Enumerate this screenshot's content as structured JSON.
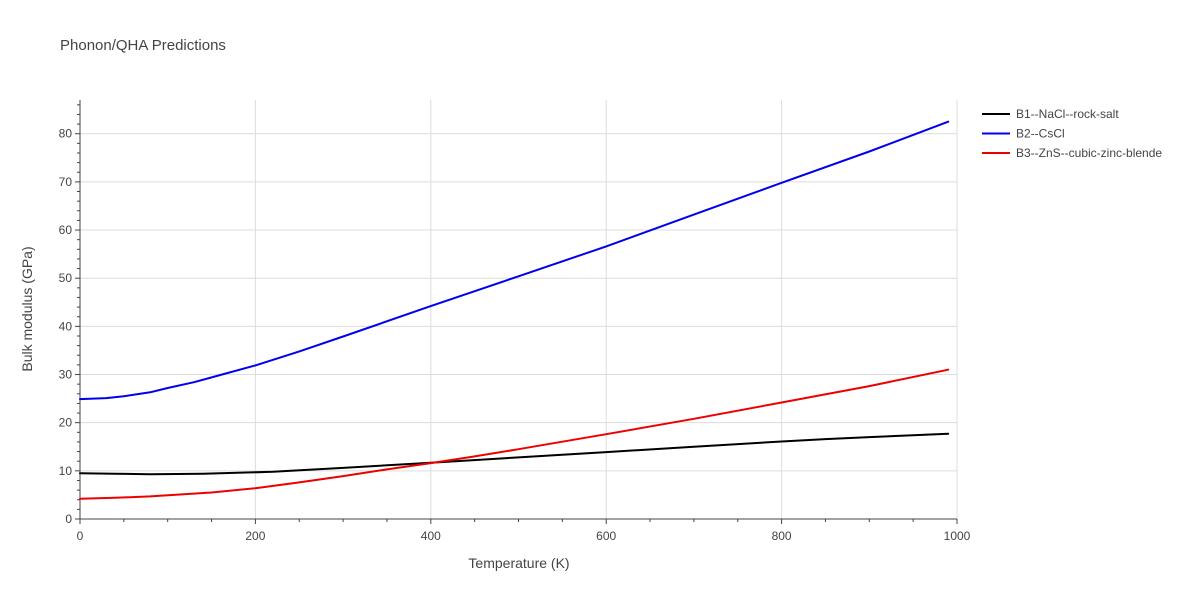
{
  "chart_data": {
    "type": "line",
    "title": "Phonon/QHA Predictions",
    "xlabel": "Temperature (K)",
    "ylabel": "Bulk modulus (GPa)",
    "xlim": [
      0,
      1000
    ],
    "ylim": [
      0,
      87
    ],
    "x_ticks": [
      0,
      200,
      400,
      600,
      800,
      1000
    ],
    "y_ticks": [
      0,
      10,
      20,
      30,
      40,
      50,
      60,
      70,
      80
    ],
    "grid": true,
    "legend_position": "top-right",
    "series": [
      {
        "name": "B1--NaCl--rock-salt",
        "color": "#000000",
        "x": [
          0,
          40,
          80,
          140,
          220,
          300,
          400,
          500,
          600,
          700,
          800,
          850,
          900,
          950,
          990
        ],
        "y": [
          9.5,
          9.4,
          9.3,
          9.4,
          9.8,
          10.6,
          11.7,
          12.8,
          13.9,
          15.0,
          16.1,
          16.6,
          17.0,
          17.4,
          17.7
        ]
      },
      {
        "name": "B2--CsCl",
        "color": "#0000ee",
        "x": [
          0,
          30,
          50,
          80,
          100,
          130,
          160,
          200,
          250,
          300,
          400,
          500,
          600,
          700,
          800,
          900,
          990
        ],
        "y": [
          24.9,
          25.1,
          25.5,
          26.3,
          27.2,
          28.4,
          29.9,
          31.9,
          34.8,
          37.9,
          44.2,
          50.4,
          56.6,
          63.2,
          69.8,
          76.3,
          82.5
        ]
      },
      {
        "name": "B3--ZnS--cubic-zinc-blende",
        "color": "#ee0000",
        "x": [
          0,
          40,
          80,
          150,
          200,
          250,
          300,
          350,
          400,
          450,
          500,
          600,
          700,
          800,
          900,
          990
        ],
        "y": [
          4.2,
          4.4,
          4.7,
          5.5,
          6.4,
          7.6,
          8.9,
          10.3,
          11.6,
          13.0,
          14.5,
          17.6,
          20.8,
          24.2,
          27.6,
          31.0
        ]
      }
    ]
  }
}
